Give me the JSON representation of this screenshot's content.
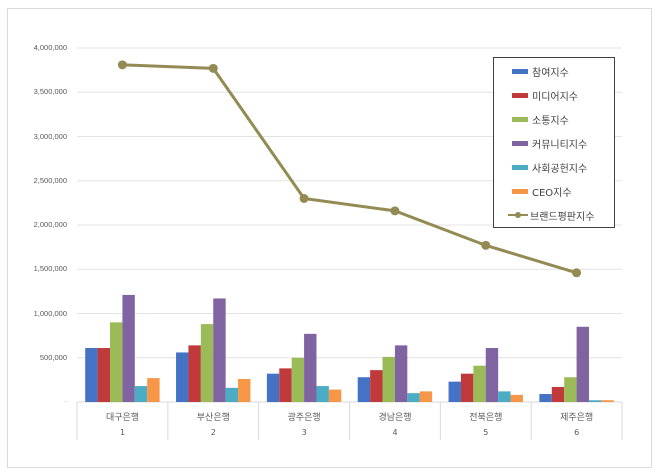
{
  "chart_data": {
    "type": "bar",
    "title": "",
    "xlabel": "",
    "ylabel": "",
    "ylim": [
      0,
      4000000
    ],
    "yticks": [
      "0",
      "500,000",
      "1,000,000",
      "1,500,000",
      "2,000,000",
      "2,500,000",
      "3,000,000",
      "3,500,000",
      "4,000,000"
    ],
    "grid": true,
    "legend_position": "right-inside",
    "categories": [
      "대구은행",
      "부산은행",
      "광주은행",
      "경남은행",
      "전북은행",
      "제주은행"
    ],
    "category_numbers": [
      "1",
      "2",
      "3",
      "4",
      "5",
      "6"
    ],
    "series": [
      {
        "name": "참여지수",
        "type": "bar",
        "color": "#4472c4",
        "values": [
          610000,
          560000,
          320000,
          280000,
          230000,
          90000
        ]
      },
      {
        "name": "미디어지수",
        "type": "bar",
        "color": "#c0393b",
        "values": [
          610000,
          640000,
          380000,
          360000,
          320000,
          170000
        ]
      },
      {
        "name": "소통지수",
        "type": "bar",
        "color": "#9bbb59",
        "values": [
          900000,
          880000,
          500000,
          510000,
          410000,
          280000
        ]
      },
      {
        "name": "커뮤니티지수",
        "type": "bar",
        "color": "#8064a2",
        "values": [
          1210000,
          1170000,
          770000,
          640000,
          610000,
          850000
        ]
      },
      {
        "name": "사회공헌지수",
        "type": "bar",
        "color": "#4bacc6",
        "values": [
          180000,
          160000,
          180000,
          100000,
          120000,
          20000
        ]
      },
      {
        "name": "CEO지수",
        "type": "bar",
        "color": "#f79646",
        "values": [
          270000,
          260000,
          140000,
          120000,
          80000,
          20000
        ]
      },
      {
        "name": "브랜드평판지수",
        "type": "line",
        "color": "#948a54",
        "values": [
          3810000,
          3770000,
          2300000,
          2160000,
          1770000,
          1460000
        ]
      }
    ]
  }
}
